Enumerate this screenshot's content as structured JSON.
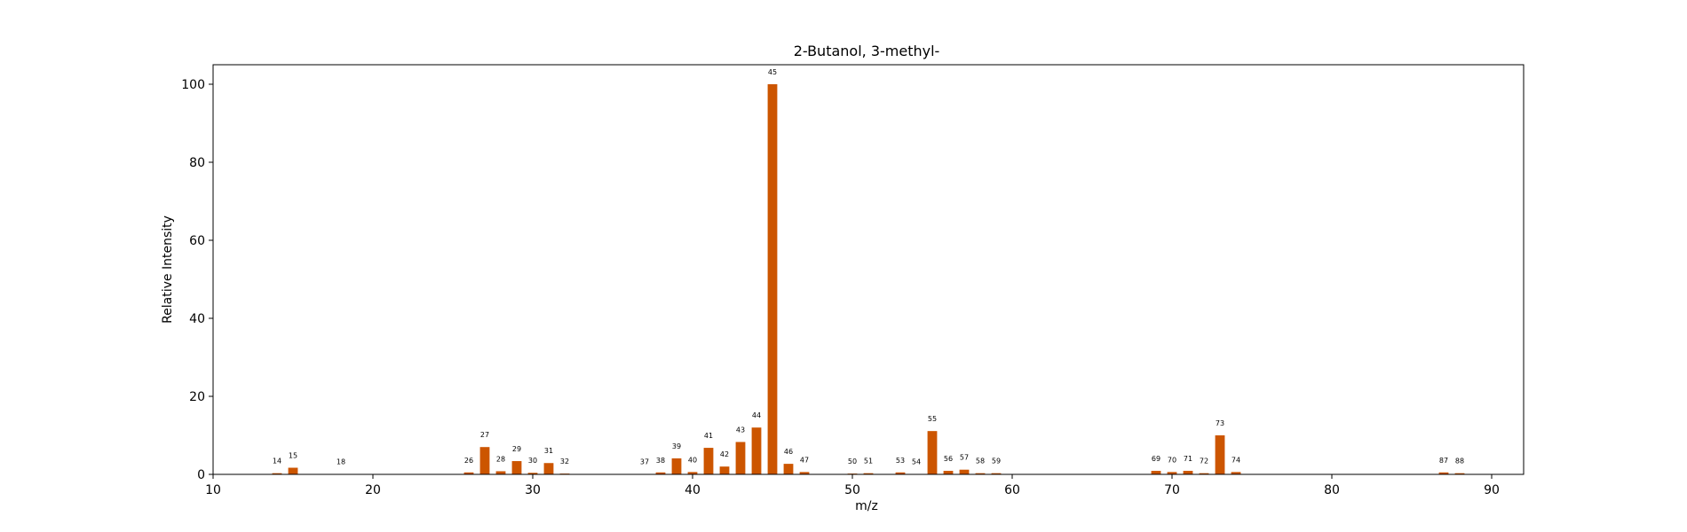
{
  "chart_data": {
    "type": "bar",
    "title": "2-Butanol, 3-methyl-",
    "xlabel": "m/z",
    "ylabel": "Relative Intensity",
    "xlim": [
      10,
      92
    ],
    "ylim": [
      0,
      105
    ],
    "xticks": [
      10,
      20,
      30,
      40,
      50,
      60,
      70,
      80,
      90
    ],
    "yticks": [
      0,
      20,
      40,
      60,
      80,
      100
    ],
    "grid": false,
    "bar_color": "#cc5500",
    "x": [
      14,
      15,
      18,
      26,
      27,
      28,
      29,
      30,
      31,
      32,
      37,
      38,
      39,
      40,
      41,
      42,
      43,
      44,
      45,
      46,
      47,
      50,
      51,
      53,
      54,
      55,
      56,
      57,
      58,
      59,
      69,
      70,
      71,
      72,
      73,
      74,
      87,
      88
    ],
    "values": [
      0.3,
      1.7,
      0.1,
      0.5,
      7.0,
      0.8,
      3.4,
      0.4,
      2.9,
      0.2,
      0.1,
      0.5,
      4.1,
      0.6,
      6.8,
      2.0,
      8.3,
      12.0,
      100,
      2.7,
      0.6,
      0.2,
      0.3,
      0.5,
      0.1,
      11.1,
      0.9,
      1.2,
      0.3,
      0.3,
      0.9,
      0.6,
      0.9,
      0.3,
      10.0,
      0.6,
      0.5,
      0.3
    ],
    "labels": [
      "14",
      "15",
      "18",
      "26",
      "27",
      "28",
      "29",
      "30",
      "31",
      "32",
      "37",
      "38",
      "39",
      "40",
      "41",
      "42",
      "43",
      "44",
      "45",
      "46",
      "47",
      "50",
      "51",
      "53",
      "54",
      "55",
      "56",
      "57",
      "58",
      "59",
      "69",
      "70",
      "71",
      "72",
      "73",
      "74",
      "87",
      "88"
    ]
  }
}
